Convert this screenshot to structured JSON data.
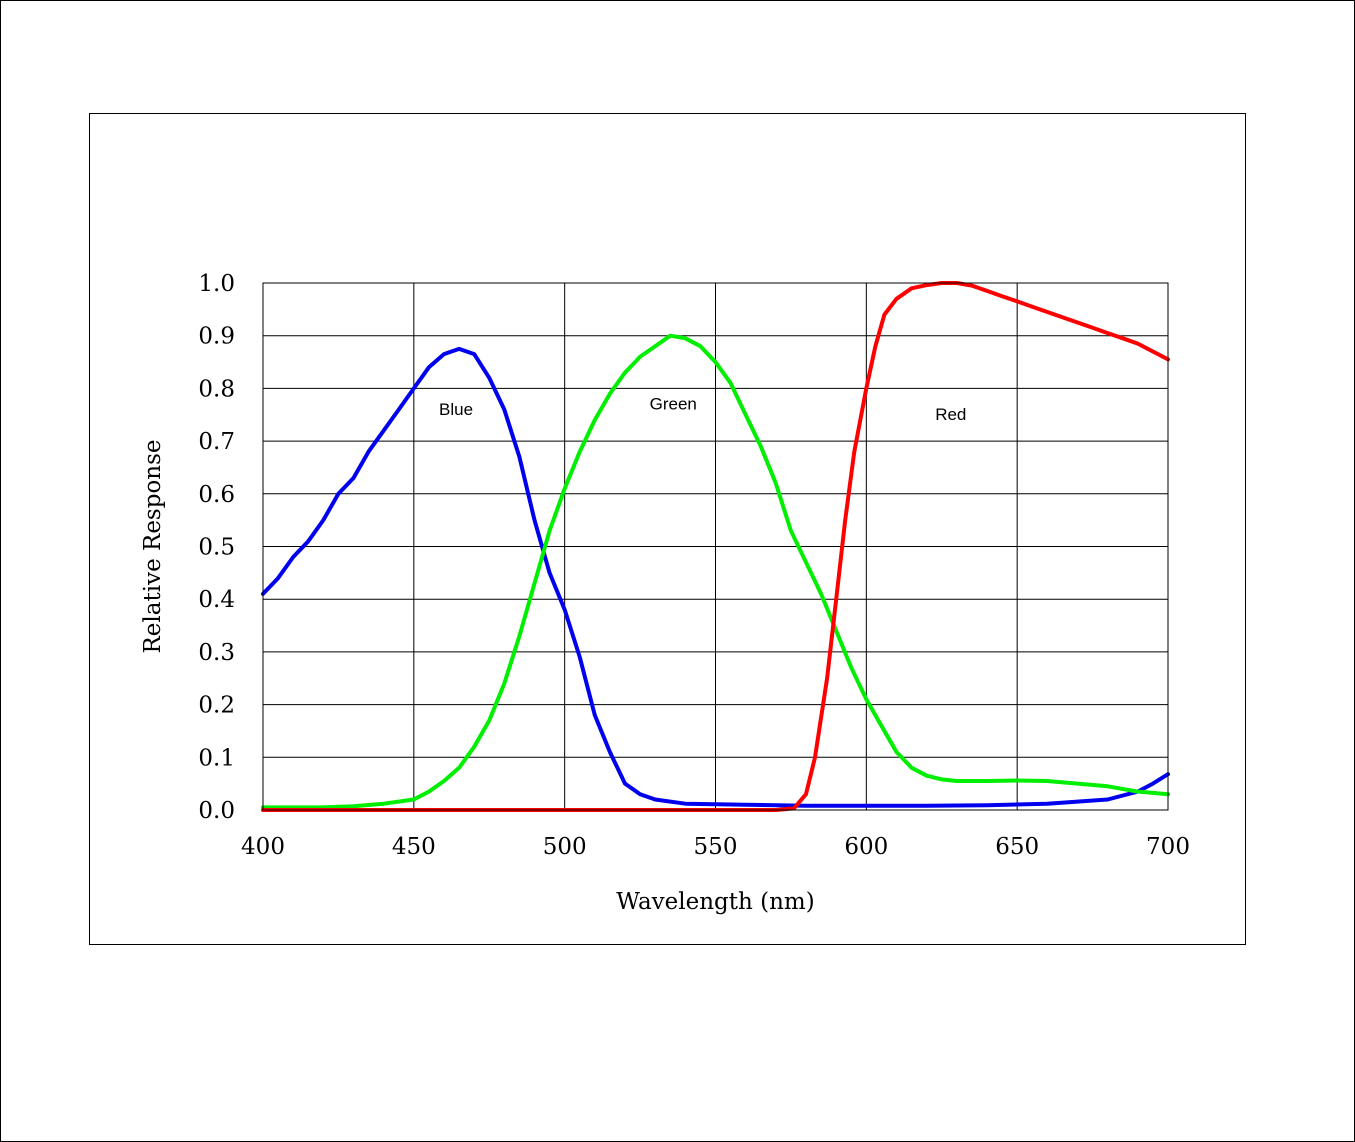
{
  "chart_data": {
    "type": "line",
    "xlabel": "Wavelength (nm)",
    "ylabel": "Relative Response",
    "xlim": [
      400,
      700
    ],
    "ylim": [
      0,
      1.0
    ],
    "x_ticks": [
      "400",
      "450",
      "500",
      "550",
      "600",
      "650",
      "700"
    ],
    "y_ticks": [
      "0.0",
      "0.1",
      "0.2",
      "0.3",
      "0.4",
      "0.5",
      "0.6",
      "0.7",
      "0.8",
      "0.9",
      "1.0"
    ],
    "grid": true,
    "series": [
      {
        "name": "Blue",
        "color": "#0000ee",
        "label_at": [
          464,
          0.75
        ],
        "points": [
          [
            400,
            0.41
          ],
          [
            405,
            0.44
          ],
          [
            410,
            0.48
          ],
          [
            415,
            0.51
          ],
          [
            420,
            0.55
          ],
          [
            425,
            0.6
          ],
          [
            430,
            0.63
          ],
          [
            435,
            0.68
          ],
          [
            440,
            0.72
          ],
          [
            445,
            0.76
          ],
          [
            450,
            0.8
          ],
          [
            455,
            0.84
          ],
          [
            460,
            0.865
          ],
          [
            465,
            0.875
          ],
          [
            470,
            0.865
          ],
          [
            475,
            0.82
          ],
          [
            480,
            0.76
          ],
          [
            485,
            0.67
          ],
          [
            490,
            0.55
          ],
          [
            495,
            0.45
          ],
          [
            500,
            0.38
          ],
          [
            505,
            0.29
          ],
          [
            510,
            0.18
          ],
          [
            515,
            0.11
          ],
          [
            520,
            0.05
          ],
          [
            525,
            0.03
          ],
          [
            530,
            0.02
          ],
          [
            540,
            0.012
          ],
          [
            560,
            0.01
          ],
          [
            580,
            0.008
          ],
          [
            600,
            0.008
          ],
          [
            620,
            0.008
          ],
          [
            640,
            0.009
          ],
          [
            660,
            0.012
          ],
          [
            680,
            0.02
          ],
          [
            690,
            0.035
          ],
          [
            695,
            0.05
          ],
          [
            700,
            0.068
          ]
        ]
      },
      {
        "name": "Green",
        "color": "#00ee00",
        "label_at": [
          536,
          0.76
        ],
        "points": [
          [
            400,
            0.005
          ],
          [
            420,
            0.005
          ],
          [
            430,
            0.007
          ],
          [
            440,
            0.012
          ],
          [
            450,
            0.02
          ],
          [
            455,
            0.035
          ],
          [
            460,
            0.055
          ],
          [
            465,
            0.08
          ],
          [
            470,
            0.12
          ],
          [
            475,
            0.17
          ],
          [
            480,
            0.24
          ],
          [
            485,
            0.33
          ],
          [
            490,
            0.43
          ],
          [
            495,
            0.53
          ],
          [
            500,
            0.61
          ],
          [
            505,
            0.68
          ],
          [
            510,
            0.74
          ],
          [
            515,
            0.79
          ],
          [
            520,
            0.83
          ],
          [
            525,
            0.86
          ],
          [
            530,
            0.88
          ],
          [
            535,
            0.9
          ],
          [
            540,
            0.895
          ],
          [
            545,
            0.88
          ],
          [
            550,
            0.85
          ],
          [
            555,
            0.81
          ],
          [
            560,
            0.75
          ],
          [
            565,
            0.69
          ],
          [
            570,
            0.62
          ],
          [
            575,
            0.53
          ],
          [
            580,
            0.47
          ],
          [
            585,
            0.41
          ],
          [
            590,
            0.34
          ],
          [
            595,
            0.27
          ],
          [
            600,
            0.21
          ],
          [
            605,
            0.16
          ],
          [
            610,
            0.11
          ],
          [
            615,
            0.08
          ],
          [
            620,
            0.065
          ],
          [
            625,
            0.058
          ],
          [
            630,
            0.055
          ],
          [
            640,
            0.055
          ],
          [
            650,
            0.056
          ],
          [
            660,
            0.055
          ],
          [
            670,
            0.05
          ],
          [
            680,
            0.045
          ],
          [
            690,
            0.035
          ],
          [
            700,
            0.03
          ]
        ]
      },
      {
        "name": "Red",
        "color": "#ff0000",
        "label_at": [
          628,
          0.74
        ],
        "points": [
          [
            400,
            0.0
          ],
          [
            570,
            0.0
          ],
          [
            576,
            0.003
          ],
          [
            580,
            0.03
          ],
          [
            583,
            0.1
          ],
          [
            587,
            0.25
          ],
          [
            590,
            0.4
          ],
          [
            593,
            0.55
          ],
          [
            596,
            0.68
          ],
          [
            600,
            0.8
          ],
          [
            603,
            0.88
          ],
          [
            606,
            0.94
          ],
          [
            610,
            0.97
          ],
          [
            615,
            0.99
          ],
          [
            620,
            0.996
          ],
          [
            625,
            1.0
          ],
          [
            630,
            1.0
          ],
          [
            635,
            0.995
          ],
          [
            640,
            0.985
          ],
          [
            645,
            0.975
          ],
          [
            650,
            0.965
          ],
          [
            655,
            0.955
          ],
          [
            660,
            0.945
          ],
          [
            665,
            0.935
          ],
          [
            670,
            0.925
          ],
          [
            675,
            0.915
          ],
          [
            680,
            0.905
          ],
          [
            685,
            0.895
          ],
          [
            690,
            0.885
          ],
          [
            695,
            0.87
          ],
          [
            700,
            0.855
          ]
        ]
      }
    ]
  }
}
